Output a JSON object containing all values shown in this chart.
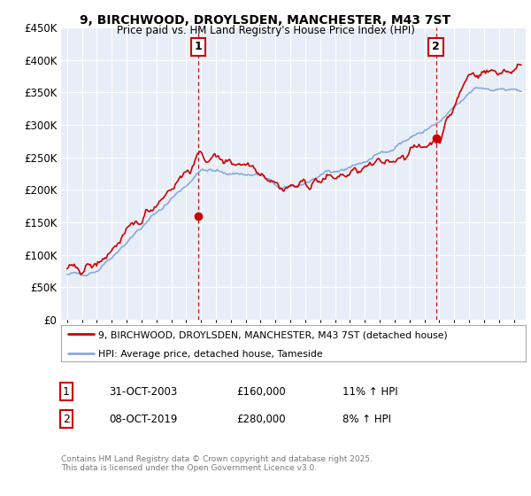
{
  "title_line1": "9, BIRCHWOOD, DROYLSDEN, MANCHESTER, M43 7ST",
  "title_line2": "Price paid vs. HM Land Registry's House Price Index (HPI)",
  "legend_line1": "9, BIRCHWOOD, DROYLSDEN, MANCHESTER, M43 7ST (detached house)",
  "legend_line2": "HPI: Average price, detached house, Tameside",
  "annotation1_date": "31-OCT-2003",
  "annotation1_price": "£160,000",
  "annotation1_hpi": "11% ↑ HPI",
  "annotation2_date": "08-OCT-2019",
  "annotation2_price": "£280,000",
  "annotation2_hpi": "8% ↑ HPI",
  "footer": "Contains HM Land Registry data © Crown copyright and database right 2025.\nThis data is licensed under the Open Government Licence v3.0.",
  "price_color": "#cc0000",
  "hpi_color": "#88aadd",
  "annotation_color": "#cc0000",
  "background_color": "#e8eef8",
  "ylim": [
    0,
    450000
  ],
  "yticks": [
    0,
    50000,
    100000,
    150000,
    200000,
    250000,
    300000,
    350000,
    400000,
    450000
  ],
  "marker1_x": 2003.83,
  "marker1_y": 160000,
  "marker2_x": 2019.77,
  "marker2_y": 280000,
  "xmin": 1994.6,
  "xmax": 2025.8
}
